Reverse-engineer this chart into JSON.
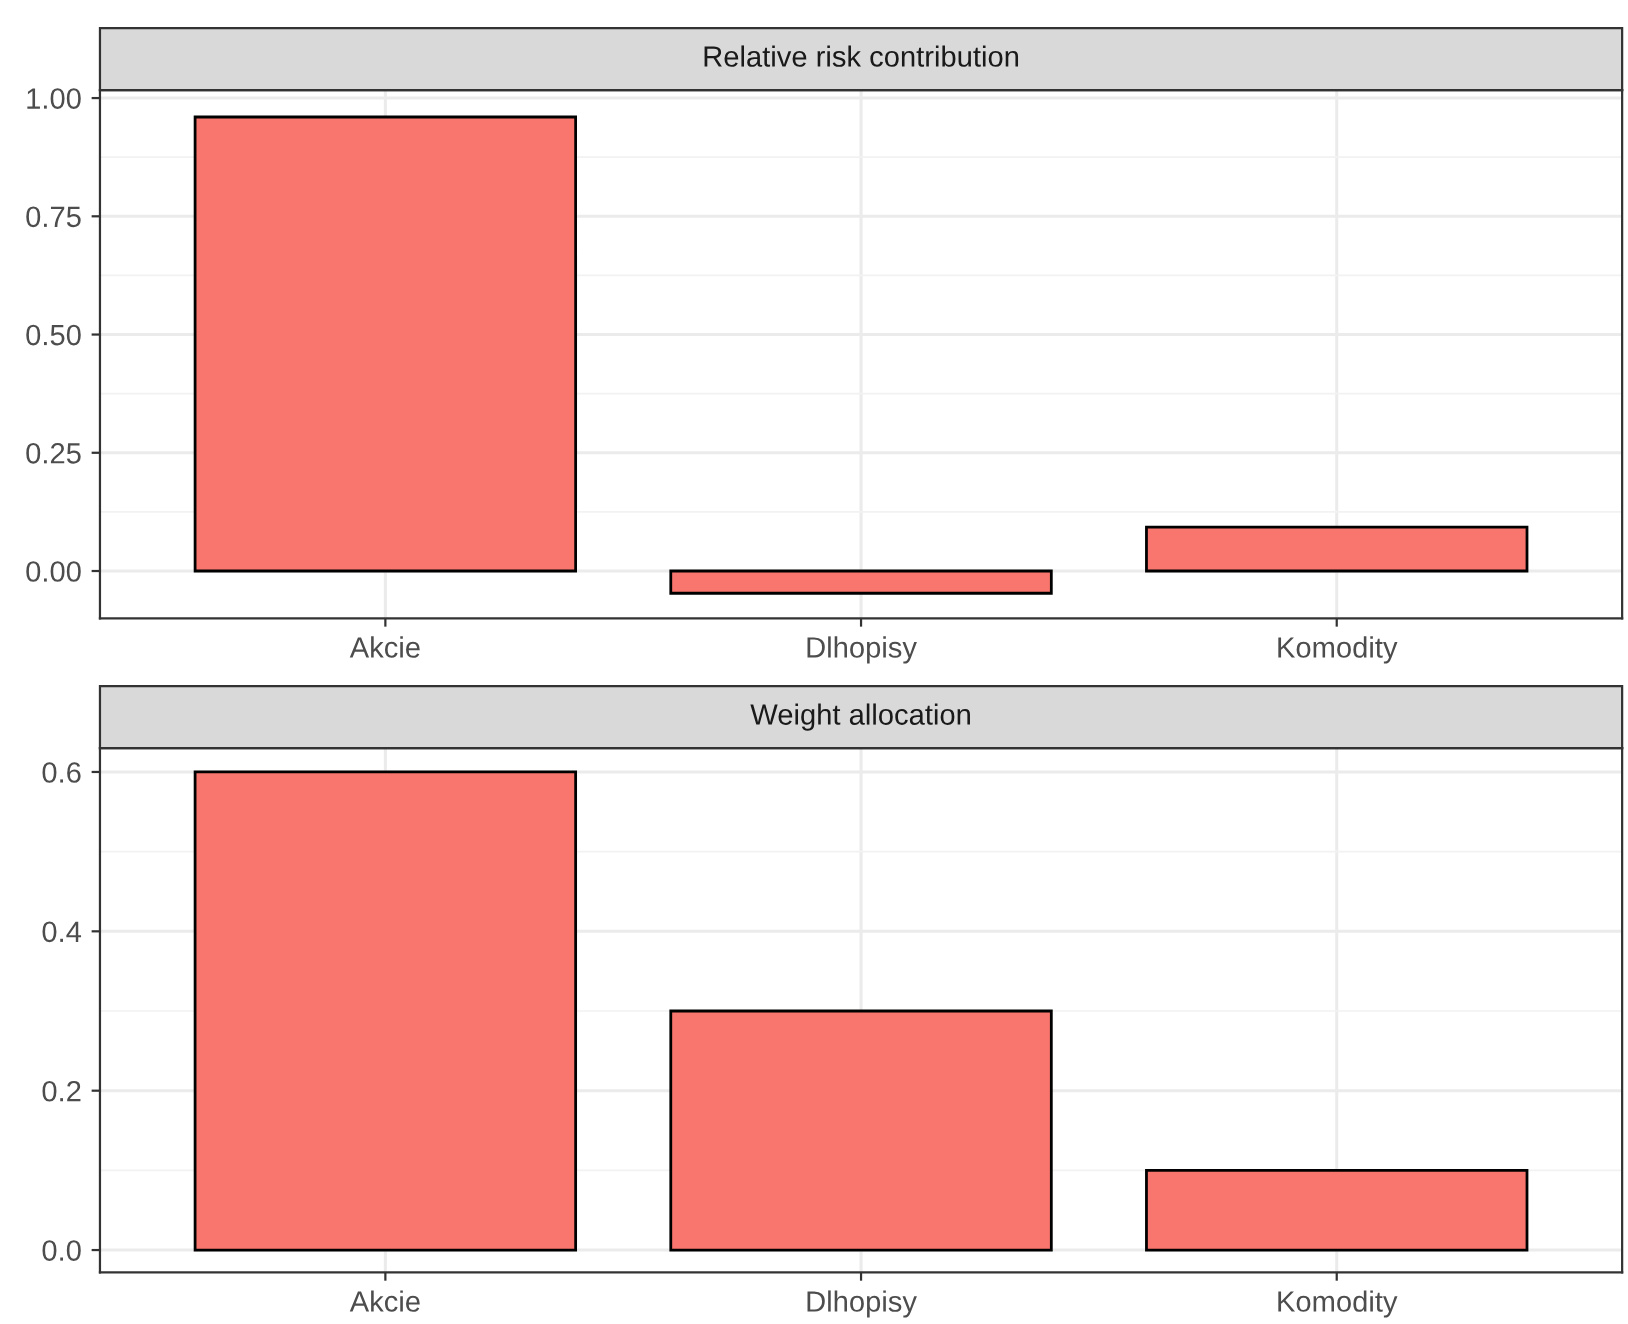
{
  "chart_data": [
    {
      "type": "bar",
      "title": "Relative risk contribution",
      "categories": [
        "Akcie",
        "Dlhopisy",
        "Komodity"
      ],
      "values": [
        0.96,
        -0.047,
        0.093
      ],
      "color": "#f8766d",
      "ylim": [
        -0.1,
        1.017
      ],
      "yticks": [
        {
          "value": 0,
          "label": "0.00"
        },
        {
          "value": 0.25,
          "label": "0.25"
        },
        {
          "value": 0.5,
          "label": "0.50"
        },
        {
          "value": 0.75,
          "label": "0.75"
        },
        {
          "value": 1,
          "label": "1.00"
        }
      ],
      "grid": true
    },
    {
      "type": "bar",
      "title": "Weight allocation",
      "categories": [
        "Akcie",
        "Dlhopisy",
        "Komodity"
      ],
      "values": [
        0.6,
        0.3,
        0.1
      ],
      "color": "#f8766d",
      "ylim": [
        -0.028,
        0.63
      ],
      "yticks": [
        {
          "value": 0,
          "label": "0.0"
        },
        {
          "value": 0.2,
          "label": "0.2"
        },
        {
          "value": 0.4,
          "label": "0.4"
        },
        {
          "value": 0.6,
          "label": "0.6"
        }
      ],
      "grid": true
    }
  ]
}
